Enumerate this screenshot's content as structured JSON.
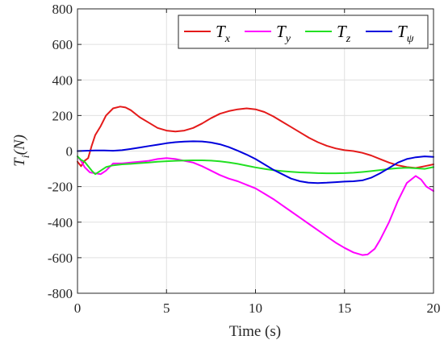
{
  "chart_data": {
    "type": "line",
    "xlabel": "Time (s)",
    "ylabel": {
      "main": "T",
      "sub": "i",
      "rest": "(N)"
    },
    "xlim": [
      0,
      20
    ],
    "ylim": [
      -800,
      800
    ],
    "xticks": [
      0,
      5,
      10,
      15,
      20
    ],
    "yticks": [
      -800,
      -600,
      -400,
      -200,
      0,
      200,
      400,
      600,
      800
    ],
    "xtick_labels": [
      "0",
      "5",
      "10",
      "15",
      "20"
    ],
    "ytick_labels": [
      "-800",
      "-600",
      "-400",
      "-200",
      "0",
      "200",
      "400",
      "600",
      "800"
    ],
    "grid": true,
    "legend_position": "top-right",
    "series": [
      {
        "name": "T_x",
        "label_main": "T",
        "label_sub": "x",
        "color": "#e41a1a",
        "x": [
          0,
          0.2,
          0.4,
          0.6,
          0.8,
          1,
          1.3,
          1.6,
          2,
          2.4,
          2.7,
          3,
          3.5,
          4,
          4.5,
          5,
          5.5,
          6,
          6.5,
          7,
          7.5,
          8,
          8.5,
          9,
          9.5,
          10,
          10.5,
          11,
          11.5,
          12,
          12.5,
          13,
          13.5,
          14,
          14.5,
          15,
          15.5,
          16,
          16.5,
          17,
          17.5,
          18,
          18.5,
          19,
          19.5,
          20
        ],
        "y": [
          -60,
          -85,
          -55,
          -40,
          30,
          90,
          140,
          200,
          240,
          250,
          245,
          230,
          190,
          160,
          130,
          115,
          110,
          115,
          130,
          155,
          185,
          210,
          225,
          235,
          240,
          235,
          220,
          195,
          165,
          135,
          105,
          75,
          50,
          30,
          15,
          5,
          0,
          -10,
          -25,
          -45,
          -65,
          -80,
          -90,
          -95,
          -85,
          -75
        ]
      },
      {
        "name": "T_y",
        "label_main": "T",
        "label_sub": "y",
        "color": "#ff00ff",
        "x": [
          0,
          0.2,
          0.4,
          0.7,
          1,
          1.3,
          1.6,
          2,
          2.5,
          3,
          3.5,
          4,
          4.5,
          5,
          5.5,
          6,
          6.5,
          7,
          7.5,
          8,
          8.5,
          9,
          9.5,
          10,
          10.5,
          11,
          11.5,
          12,
          12.5,
          13,
          13.5,
          14,
          14.5,
          15,
          15.5,
          16,
          16.3,
          16.7,
          17,
          17.5,
          18,
          18.5,
          19,
          19.3,
          19.6,
          20
        ],
        "y": [
          -30,
          -55,
          -90,
          -120,
          -125,
          -130,
          -110,
          -70,
          -70,
          -65,
          -60,
          -55,
          -45,
          -40,
          -45,
          -55,
          -65,
          -85,
          -110,
          -135,
          -155,
          -170,
          -190,
          -210,
          -240,
          -270,
          -305,
          -340,
          -375,
          -410,
          -445,
          -480,
          -515,
          -545,
          -570,
          -585,
          -582,
          -550,
          -500,
          -400,
          -280,
          -180,
          -140,
          -160,
          -200,
          -225
        ]
      },
      {
        "name": "T_z",
        "label_main": "T",
        "label_sub": "z",
        "color": "#22e022",
        "x": [
          0,
          0.2,
          0.4,
          0.6,
          0.8,
          1,
          1.3,
          1.6,
          2,
          2.5,
          3,
          3.5,
          4,
          4.5,
          5,
          5.5,
          6,
          6.5,
          7,
          7.5,
          8,
          8.5,
          9,
          9.5,
          10,
          10.5,
          11,
          11.5,
          12,
          12.5,
          13,
          13.5,
          14,
          14.5,
          15,
          15.5,
          16,
          16.5,
          17,
          17.5,
          18,
          18.5,
          19,
          19.5,
          20
        ],
        "y": [
          -30,
          -50,
          -60,
          -85,
          -110,
          -130,
          -110,
          -90,
          -80,
          -75,
          -72,
          -68,
          -65,
          -60,
          -57,
          -55,
          -53,
          -52,
          -52,
          -54,
          -58,
          -64,
          -72,
          -82,
          -92,
          -100,
          -108,
          -113,
          -117,
          -120,
          -122,
          -124,
          -125,
          -125,
          -124,
          -122,
          -118,
          -113,
          -107,
          -101,
          -96,
          -94,
          -97,
          -100,
          -90
        ]
      },
      {
        "name": "T_psi",
        "label_main": "T",
        "label_sub": "ψ",
        "color": "#0000dd",
        "x": [
          0,
          0.5,
          1,
          1.5,
          2,
          2.5,
          3,
          3.5,
          4,
          4.5,
          5,
          5.5,
          6,
          6.5,
          7,
          7.5,
          8,
          8.5,
          9,
          9.5,
          10,
          10.5,
          11,
          11.5,
          12,
          12.5,
          13,
          13.5,
          14,
          14.5,
          15,
          15.5,
          16,
          16.5,
          17,
          17.5,
          18,
          18.5,
          19,
          19.5,
          20
        ],
        "y": [
          0,
          2,
          3,
          3,
          2,
          5,
          12,
          20,
          28,
          36,
          44,
          50,
          53,
          55,
          54,
          48,
          38,
          22,
          2,
          -20,
          -45,
          -75,
          -105,
          -130,
          -155,
          -170,
          -178,
          -180,
          -178,
          -175,
          -172,
          -170,
          -165,
          -150,
          -125,
          -95,
          -65,
          -45,
          -35,
          -30,
          -33
        ]
      }
    ]
  }
}
